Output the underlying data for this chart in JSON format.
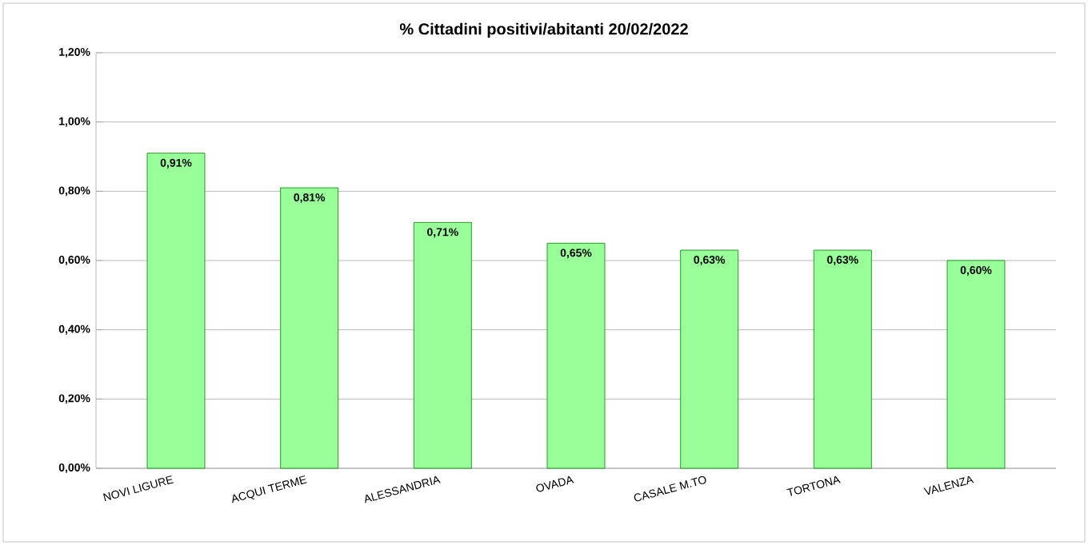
{
  "chart_data": {
    "type": "bar",
    "title": "% Cittadini positivi/abitanti  20/02/2022",
    "categories": [
      "NOVI LIGURE",
      "ACQUI TERME",
      "ALESSANDRIA",
      "OVADA",
      "CASALE M.TO",
      "TORTONA",
      "VALENZA"
    ],
    "values": [
      0.91,
      0.81,
      0.71,
      0.65,
      0.63,
      0.63,
      0.6
    ],
    "value_labels": [
      "0,91%",
      "0,81%",
      "0,71%",
      "0,65%",
      "0,63%",
      "0,63%",
      "0,60%"
    ],
    "color": "#99ff99",
    "ylim": [
      0,
      1.2
    ],
    "yticks": [
      {
        "value": 0,
        "label": "0,00%"
      },
      {
        "value": 0.2,
        "label": "0,20%"
      },
      {
        "value": 0.4,
        "label": "0,40%"
      },
      {
        "value": 0.6,
        "label": "0,60%"
      },
      {
        "value": 0.8,
        "label": "0,80%"
      },
      {
        "value": 1.0,
        "label": "1,00%"
      },
      {
        "value": 1.2,
        "label": "1,20%"
      }
    ],
    "grid": "y"
  }
}
